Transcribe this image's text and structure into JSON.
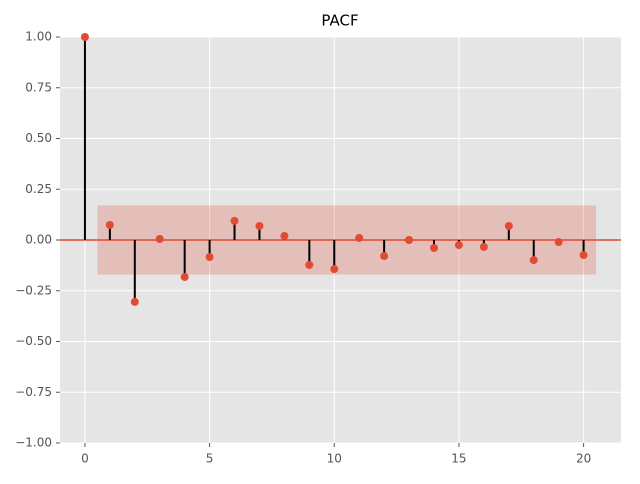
{
  "chart_data": {
    "type": "stem",
    "title": "PACF",
    "x": [
      0,
      1,
      2,
      3,
      4,
      5,
      6,
      7,
      8,
      9,
      10,
      11,
      12,
      13,
      14,
      15,
      16,
      17,
      18,
      19,
      20
    ],
    "values": [
      1.0,
      0.074,
      -0.305,
      0.005,
      -0.182,
      -0.084,
      0.094,
      0.069,
      0.02,
      -0.123,
      -0.143,
      0.01,
      -0.079,
      0.0,
      -0.039,
      -0.025,
      -0.034,
      0.069,
      -0.099,
      -0.01,
      -0.074
    ],
    "color": "#e24a33",
    "stem_color": "#000000",
    "confint": {
      "x": [
        0.5,
        20.5
      ],
      "y": [
        -0.17,
        0.17
      ],
      "color": "#e24a33"
    },
    "xlim": [
      -1,
      21.5
    ],
    "ylim": [
      -1,
      1
    ],
    "xticks": [
      0,
      5,
      10,
      15,
      20
    ],
    "yticks": [
      {
        "value": -1,
        "label": "−1.00"
      },
      {
        "value": -0.75,
        "label": "−0.75"
      },
      {
        "value": -0.5,
        "label": "−0.50"
      },
      {
        "value": -0.25,
        "label": "−0.25"
      },
      {
        "value": 0,
        "label": "0.00"
      },
      {
        "value": 0.25,
        "label": "0.25"
      },
      {
        "value": 0.5,
        "label": "0.50"
      },
      {
        "value": 0.75,
        "label": "0.75"
      },
      {
        "value": 1,
        "label": "1.00"
      }
    ],
    "grid": true
  }
}
